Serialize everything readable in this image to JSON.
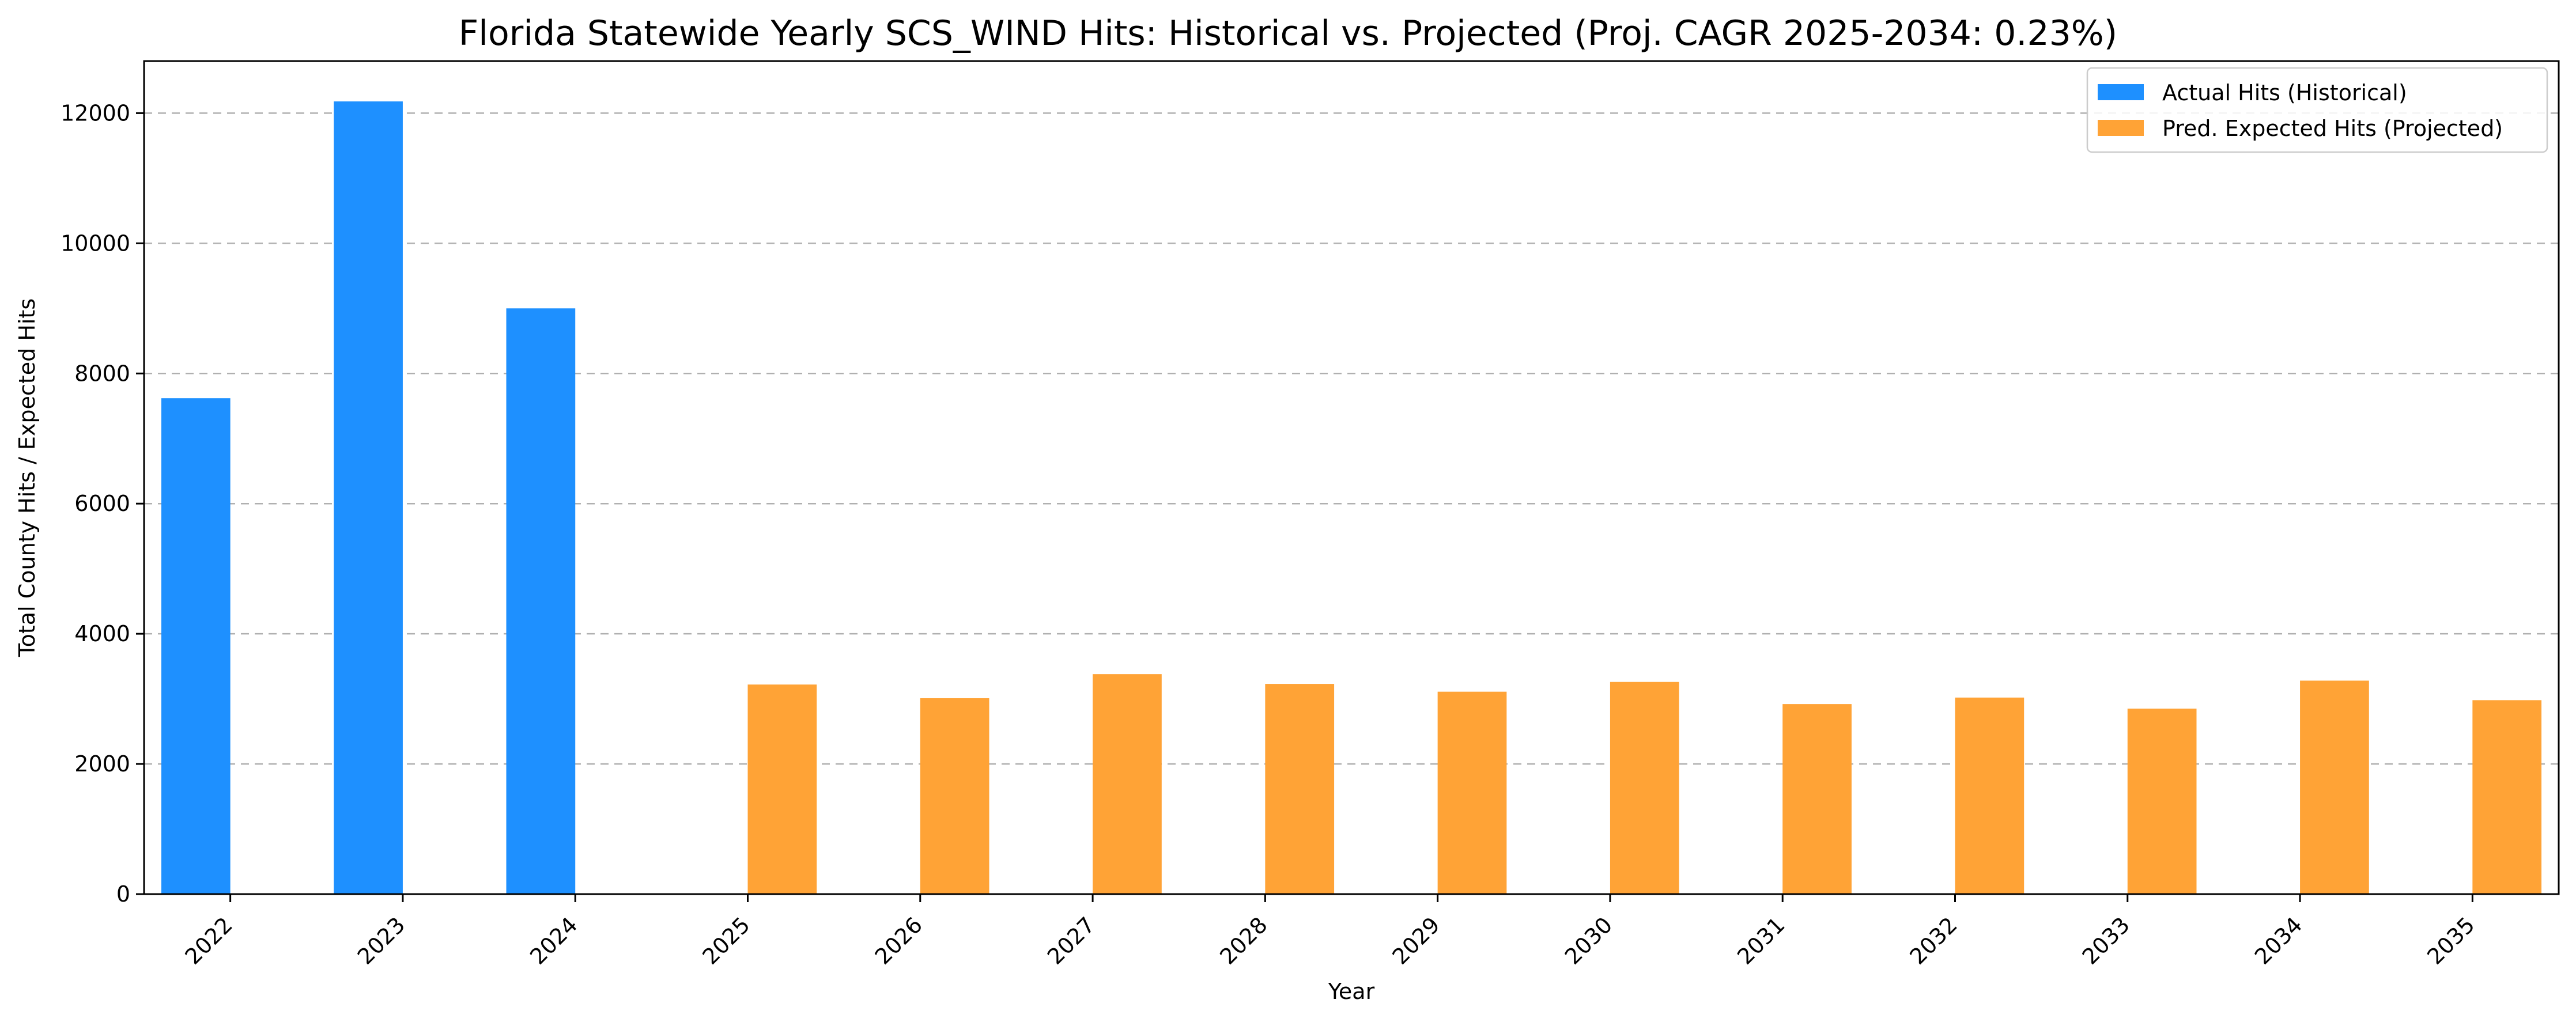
{
  "chart_data": {
    "type": "bar",
    "title": "Florida Statewide Yearly SCS_WIND Hits: Historical vs. Projected (Proj. CAGR 2025-2034: 0.23%)",
    "xlabel": "Year",
    "ylabel": "Total County Hits / Expected Hits",
    "categories": [
      "2022",
      "2023",
      "2024",
      "2025",
      "2026",
      "2027",
      "2028",
      "2029",
      "2030",
      "2031",
      "2032",
      "2033",
      "2034",
      "2035"
    ],
    "ylim": [
      0,
      12800
    ],
    "yticks": [
      0,
      2000,
      4000,
      6000,
      8000,
      10000,
      12000
    ],
    "grid": "y-dashed",
    "legend_position": "top-right",
    "series": [
      {
        "name": "Actual Hits (Historical)",
        "color": "#1e90ff",
        "values": [
          7620,
          12180,
          9000,
          null,
          null,
          null,
          null,
          null,
          null,
          null,
          null,
          null,
          null,
          null
        ]
      },
      {
        "name": "Pred. Expected Hits (Projected)",
        "color": "#ffa336",
        "values": [
          null,
          null,
          null,
          3220,
          3010,
          3380,
          3230,
          3110,
          3260,
          2920,
          3020,
          2850,
          3280,
          2980
        ]
      }
    ]
  }
}
